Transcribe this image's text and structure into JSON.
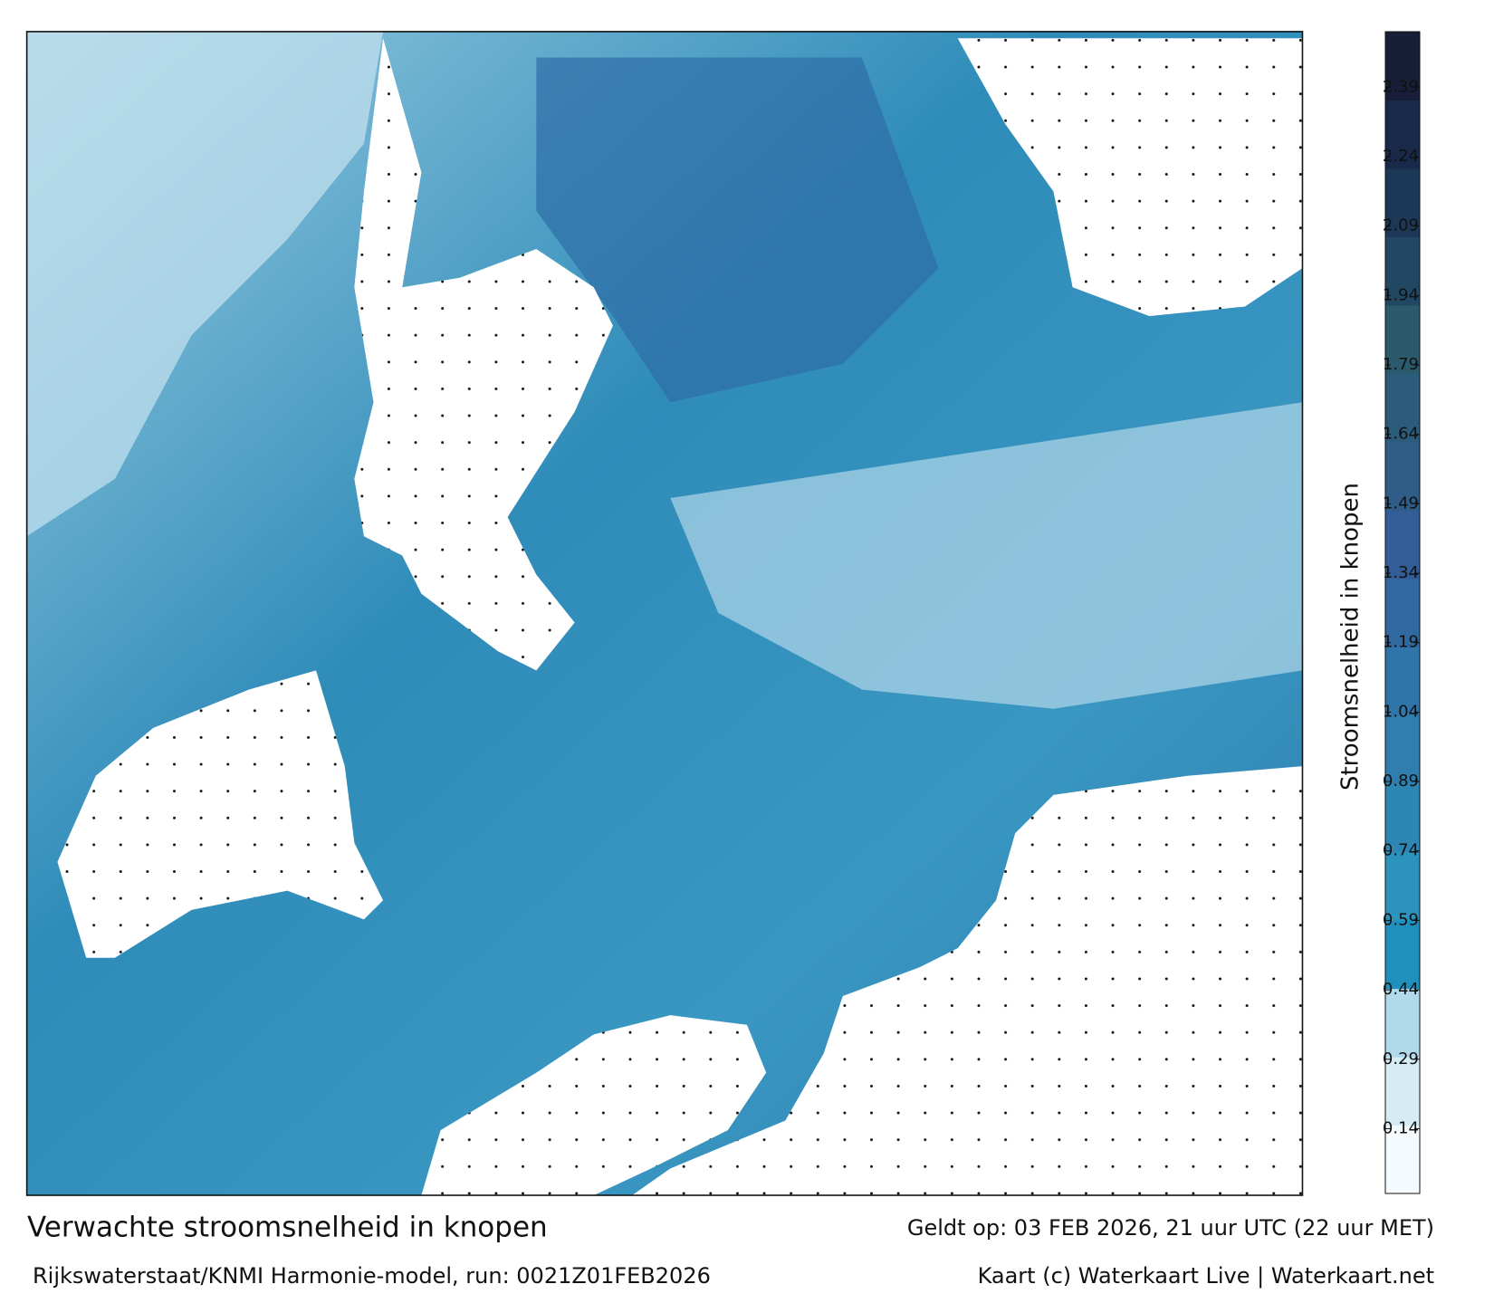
{
  "map": {
    "title": "Verwachte stroomsnelheid in knopen",
    "subtitle": "Rijkswaterstaat/KNMI Harmonie-model, run: 0021Z01FEB2026",
    "valid_time": "Geldt op: 03 FEB 2026, 21 uur UTC (22 uur MET)",
    "credit": "Kaart (c) Waterkaart Live | Waterkaart.net"
  },
  "colorbar": {
    "label": "Stroomsnelheid in knopen",
    "lim": [
      0,
      2.51
    ],
    "ticks": [
      0.14,
      0.29,
      0.44,
      0.59,
      0.74,
      0.89,
      1.04,
      1.19,
      1.34,
      1.49,
      1.64,
      1.79,
      1.94,
      2.09,
      2.24,
      2.39
    ],
    "colors": [
      "#f4fafd",
      "#d6ecf4",
      "#b0d9ea",
      "#1f8fbd",
      "#2b93bd",
      "#2e86b4",
      "#2f7eae",
      "#3075aa",
      "#31689f",
      "#335d96",
      "#2f5d88",
      "#2c5c7c",
      "#2a5a6c",
      "#224763",
      "#1c3856",
      "#19294a",
      "#181d38"
    ]
  }
}
